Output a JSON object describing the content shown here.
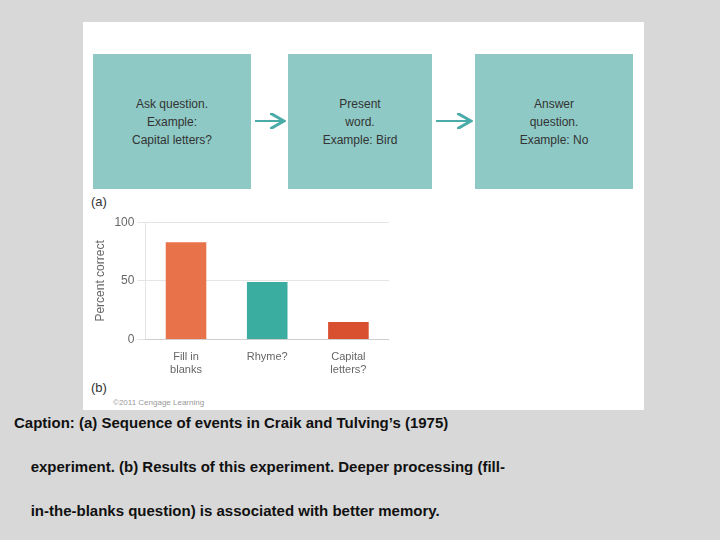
{
  "chart_data": {
    "type": "bar",
    "categories": [
      "Fill in\nblanks",
      "Rhyme?",
      "Capital\nletters?"
    ],
    "values": [
      83,
      49,
      15
    ],
    "colors": [
      "#e8724a",
      "#3aada0",
      "#d95030"
    ],
    "ylabel": "Percent correct",
    "ylim": [
      0,
      100
    ],
    "yticks": [
      0,
      50,
      100
    ],
    "grid": true,
    "flow_steps": [
      "Ask question.\nExample:\nCapital letters?",
      "Present\nword.\nExample: Bird",
      "Answer\nquestion.\nExample: No"
    ],
    "annotations": [
      "(a)",
      "(b)",
      "©2011 Cengage Learning"
    ],
    "caption": [
      "Caption: (a) Sequence of events in Craik and Tulving’s (1975)",
      "    experiment. (b) Results of this experiment. Deeper processing (fill-",
      "    in-the-blanks question) is associated with better memory."
    ]
  }
}
